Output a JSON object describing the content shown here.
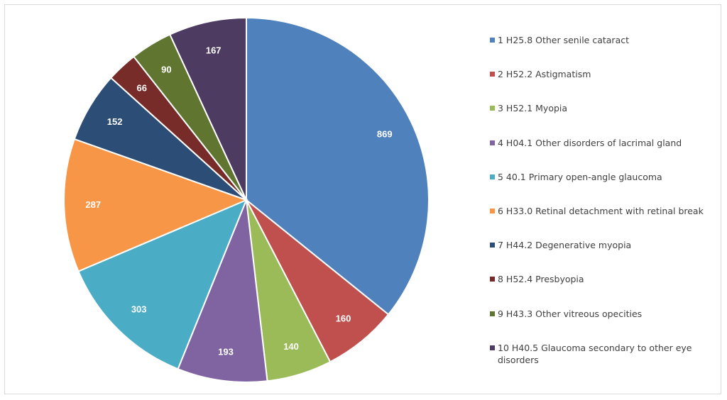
{
  "chart_data": {
    "type": "pie",
    "title": "",
    "start": "12 o'clock",
    "direction": "clockwise",
    "legend_position": "right",
    "slices": [
      {
        "label": "1 H25.8 Other senile cataract",
        "value": 869,
        "color": "#4F81BD"
      },
      {
        "label": "2 H52.2 Astigmatism",
        "value": 160,
        "color": "#C0504D"
      },
      {
        "label": "3 H52.1 Myopia",
        "value": 140,
        "color": "#9BBB59"
      },
      {
        "label": "4 H04.1 Other disorders of lacrimal gland",
        "value": 193,
        "color": "#8064A2"
      },
      {
        "label": "5 40.1 Primary open-angle glaucoma",
        "value": 303,
        "color": "#4BACC6"
      },
      {
        "label": "6 H33.0 Retinal detachment with retinal break",
        "value": 287,
        "color": "#F79646"
      },
      {
        "label": "7 H44.2 Degenerative myopia",
        "value": 152,
        "color": "#2C4D75"
      },
      {
        "label": "8 H52.4 Presbyopia",
        "value": 66,
        "color": "#772C2A"
      },
      {
        "label": "9 H43.3 Other vitreous opecities",
        "value": 90,
        "color": "#5F7530"
      },
      {
        "label": "10 H40.5 Glaucoma secondary to other eye disorders",
        "value": 167,
        "color": "#4D3B62"
      }
    ]
  }
}
